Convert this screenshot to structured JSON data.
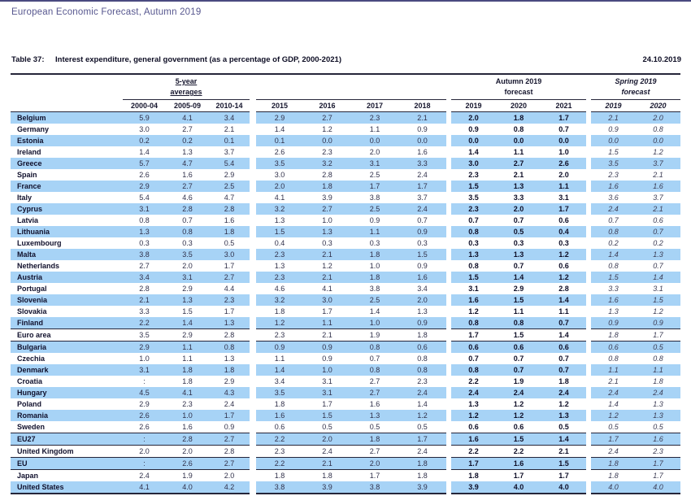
{
  "page": {
    "title": "European Economic Forecast, Autumn 2019",
    "date": "24.10.2019"
  },
  "caption": {
    "label": "Table 37:",
    "title": "Interest expenditure, general government (as a percentage of GDP, 2000-2021)"
  },
  "colors": {
    "stripe_blue": "#a7d3f6",
    "title_purple": "#57578f",
    "rule_dark": "#26263a"
  },
  "table": {
    "group_headers": {
      "averages_line1": "5-year",
      "averages_line2": "averages",
      "autumn_line1": "Autumn 2019",
      "autumn_line2": "forecast",
      "spring_line1": "Spring 2019",
      "spring_line2": "forecast"
    },
    "columns": [
      "2000-04",
      "2005-09",
      "2010-14",
      "2015",
      "2016",
      "2017",
      "2018",
      "2019",
      "2020",
      "2021",
      "2019",
      "2020"
    ],
    "rows": [
      {
        "name": "Belgium",
        "values": [
          "5.9",
          "4.1",
          "3.4",
          "2.9",
          "2.7",
          "2.3",
          "2.1",
          "2.0",
          "1.8",
          "1.7",
          "2.1",
          "2.0"
        ]
      },
      {
        "name": "Germany",
        "values": [
          "3.0",
          "2.7",
          "2.1",
          "1.4",
          "1.2",
          "1.1",
          "0.9",
          "0.9",
          "0.8",
          "0.7",
          "0.9",
          "0.8"
        ]
      },
      {
        "name": "Estonia",
        "values": [
          "0.2",
          "0.2",
          "0.1",
          "0.1",
          "0.0",
          "0.0",
          "0.0",
          "0.0",
          "0.0",
          "0.0",
          "0.0",
          "0.0"
        ]
      },
      {
        "name": "Ireland",
        "values": [
          "1.4",
          "1.3",
          "3.7",
          "2.6",
          "2.3",
          "2.0",
          "1.6",
          "1.4",
          "1.1",
          "1.0",
          "1.5",
          "1.2"
        ]
      },
      {
        "name": "Greece",
        "values": [
          "5.7",
          "4.7",
          "5.4",
          "3.5",
          "3.2",
          "3.1",
          "3.3",
          "3.0",
          "2.7",
          "2.6",
          "3.5",
          "3.7"
        ]
      },
      {
        "name": "Spain",
        "values": [
          "2.6",
          "1.6",
          "2.9",
          "3.0",
          "2.8",
          "2.5",
          "2.4",
          "2.3",
          "2.1",
          "2.0",
          "2.3",
          "2.1"
        ]
      },
      {
        "name": "France",
        "values": [
          "2.9",
          "2.7",
          "2.5",
          "2.0",
          "1.8",
          "1.7",
          "1.7",
          "1.5",
          "1.3",
          "1.1",
          "1.6",
          "1.6"
        ]
      },
      {
        "name": "Italy",
        "values": [
          "5.4",
          "4.6",
          "4.7",
          "4.1",
          "3.9",
          "3.8",
          "3.7",
          "3.5",
          "3.3",
          "3.1",
          "3.6",
          "3.7"
        ]
      },
      {
        "name": "Cyprus",
        "values": [
          "3.1",
          "2.8",
          "2.8",
          "3.2",
          "2.7",
          "2.5",
          "2.4",
          "2.3",
          "2.0",
          "1.7",
          "2.4",
          "2.1"
        ]
      },
      {
        "name": "Latvia",
        "values": [
          "0.8",
          "0.7",
          "1.6",
          "1.3",
          "1.0",
          "0.9",
          "0.7",
          "0.7",
          "0.7",
          "0.6",
          "0.7",
          "0.6"
        ]
      },
      {
        "name": "Lithuania",
        "values": [
          "1.3",
          "0.8",
          "1.8",
          "1.5",
          "1.3",
          "1.1",
          "0.9",
          "0.8",
          "0.5",
          "0.4",
          "0.8",
          "0.7"
        ]
      },
      {
        "name": "Luxembourg",
        "values": [
          "0.3",
          "0.3",
          "0.5",
          "0.4",
          "0.3",
          "0.3",
          "0.3",
          "0.3",
          "0.3",
          "0.3",
          "0.2",
          "0.2"
        ]
      },
      {
        "name": "Malta",
        "values": [
          "3.8",
          "3.5",
          "3.0",
          "2.3",
          "2.1",
          "1.8",
          "1.5",
          "1.3",
          "1.3",
          "1.2",
          "1.4",
          "1.3"
        ]
      },
      {
        "name": "Netherlands",
        "values": [
          "2.7",
          "2.0",
          "1.7",
          "1.3",
          "1.2",
          "1.0",
          "0.9",
          "0.8",
          "0.7",
          "0.6",
          "0.8",
          "0.7"
        ]
      },
      {
        "name": "Austria",
        "values": [
          "3.4",
          "3.1",
          "2.7",
          "2.3",
          "2.1",
          "1.8",
          "1.6",
          "1.5",
          "1.4",
          "1.2",
          "1.5",
          "1.4"
        ]
      },
      {
        "name": "Portugal",
        "values": [
          "2.8",
          "2.9",
          "4.4",
          "4.6",
          "4.1",
          "3.8",
          "3.4",
          "3.1",
          "2.9",
          "2.8",
          "3.3",
          "3.1"
        ]
      },
      {
        "name": "Slovenia",
        "values": [
          "2.1",
          "1.3",
          "2.3",
          "3.2",
          "3.0",
          "2.5",
          "2.0",
          "1.6",
          "1.5",
          "1.4",
          "1.6",
          "1.5"
        ]
      },
      {
        "name": "Slovakia",
        "values": [
          "3.3",
          "1.5",
          "1.7",
          "1.8",
          "1.7",
          "1.4",
          "1.3",
          "1.2",
          "1.1",
          "1.1",
          "1.3",
          "1.2"
        ]
      },
      {
        "name": "Finland",
        "values": [
          "2.2",
          "1.4",
          "1.3",
          "1.2",
          "1.1",
          "1.0",
          "0.9",
          "0.8",
          "0.8",
          "0.7",
          "0.9",
          "0.9"
        ]
      },
      {
        "name": "Euro area",
        "sep": true,
        "values": [
          "3.5",
          "2.9",
          "2.8",
          "2.3",
          "2.1",
          "1.9",
          "1.8",
          "1.7",
          "1.5",
          "1.4",
          "1.8",
          "1.7"
        ]
      },
      {
        "name": "Bulgaria",
        "values": [
          "2.9",
          "1.1",
          "0.8",
          "0.9",
          "0.9",
          "0.8",
          "0.6",
          "0.6",
          "0.6",
          "0.6",
          "0.6",
          "0.5"
        ]
      },
      {
        "name": "Czechia",
        "values": [
          "1.0",
          "1.1",
          "1.3",
          "1.1",
          "0.9",
          "0.7",
          "0.8",
          "0.7",
          "0.7",
          "0.7",
          "0.8",
          "0.8"
        ]
      },
      {
        "name": "Denmark",
        "values": [
          "3.1",
          "1.8",
          "1.8",
          "1.4",
          "1.0",
          "0.8",
          "0.8",
          "0.8",
          "0.7",
          "0.7",
          "1.1",
          "1.1"
        ]
      },
      {
        "name": "Croatia",
        "values": [
          ":",
          "1.8",
          "2.9",
          "3.4",
          "3.1",
          "2.7",
          "2.3",
          "2.2",
          "1.9",
          "1.8",
          "2.1",
          "1.8"
        ]
      },
      {
        "name": "Hungary",
        "values": [
          "4.5",
          "4.1",
          "4.3",
          "3.5",
          "3.1",
          "2.7",
          "2.4",
          "2.4",
          "2.4",
          "2.4",
          "2.4",
          "2.4"
        ]
      },
      {
        "name": "Poland",
        "values": [
          "2.9",
          "2.3",
          "2.4",
          "1.8",
          "1.7",
          "1.6",
          "1.4",
          "1.3",
          "1.2",
          "1.2",
          "1.4",
          "1.3"
        ]
      },
      {
        "name": "Romania",
        "values": [
          "2.6",
          "1.0",
          "1.7",
          "1.6",
          "1.5",
          "1.3",
          "1.2",
          "1.2",
          "1.2",
          "1.3",
          "1.2",
          "1.3"
        ]
      },
      {
        "name": "Sweden",
        "values": [
          "2.6",
          "1.6",
          "0.9",
          "0.6",
          "0.5",
          "0.5",
          "0.5",
          "0.6",
          "0.6",
          "0.5",
          "0.5",
          "0.5"
        ]
      },
      {
        "name": "EU27",
        "sep": true,
        "values": [
          ":",
          "2.8",
          "2.7",
          "2.2",
          "2.0",
          "1.8",
          "1.7",
          "1.6",
          "1.5",
          "1.4",
          "1.7",
          "1.6"
        ]
      },
      {
        "name": "United Kingdom",
        "values": [
          "2.0",
          "2.0",
          "2.8",
          "2.3",
          "2.4",
          "2.7",
          "2.4",
          "2.2",
          "2.2",
          "2.1",
          "2.4",
          "2.3"
        ]
      },
      {
        "name": "EU",
        "sep": true,
        "values": [
          ":",
          "2.6",
          "2.7",
          "2.2",
          "2.1",
          "2.0",
          "1.8",
          "1.7",
          "1.6",
          "1.5",
          "1.8",
          "1.7"
        ]
      },
      {
        "name": "Japan",
        "values": [
          "2.4",
          "1.9",
          "2.0",
          "1.8",
          "1.8",
          "1.7",
          "1.8",
          "1.8",
          "1.7",
          "1.7",
          "1.8",
          "1.7"
        ]
      },
      {
        "name": "United States",
        "values": [
          "4.1",
          "4.0",
          "4.2",
          "3.8",
          "3.9",
          "3.8",
          "3.9",
          "3.9",
          "4.0",
          "4.0",
          "4.0",
          "4.0"
        ]
      }
    ]
  }
}
